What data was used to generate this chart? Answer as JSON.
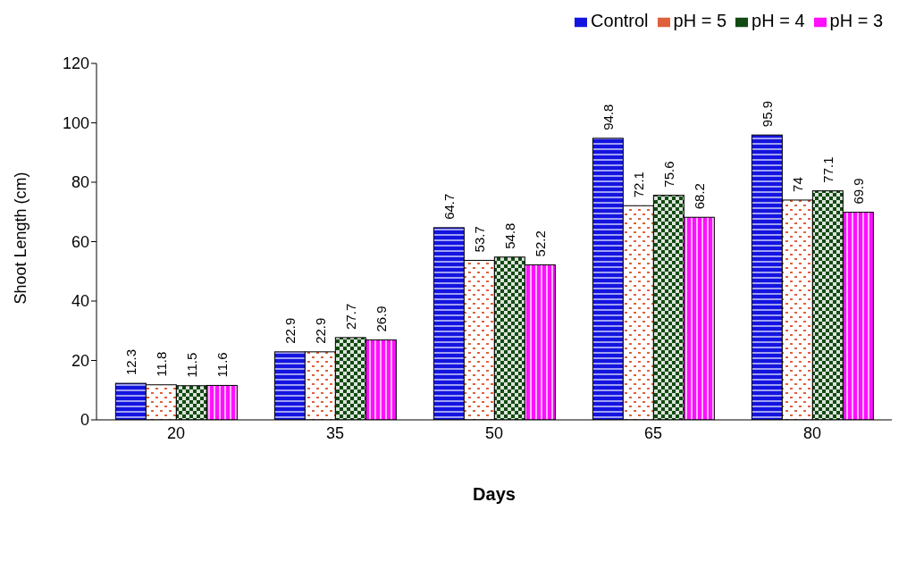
{
  "chart_data": {
    "type": "bar",
    "xlabel": "Days",
    "ylabel": "Shoot Length (cm)",
    "categories": [
      "20",
      "35",
      "50",
      "65",
      "80"
    ],
    "series": [
      {
        "name": "Control",
        "color": "#1414e0",
        "values": [
          12.3,
          22.9,
          64.7,
          94.8,
          95.9
        ]
      },
      {
        "name": "pH = 5",
        "color": "#e0603c",
        "values": [
          11.8,
          22.9,
          53.7,
          72.1,
          74
        ]
      },
      {
        "name": "pH = 4",
        "color": "#124a12",
        "values": [
          11.5,
          27.7,
          54.8,
          75.6,
          77.1
        ]
      },
      {
        "name": "pH = 3",
        "color": "#ff10ff",
        "values": [
          11.6,
          26.9,
          52.2,
          68.2,
          69.9
        ]
      }
    ],
    "ylim": [
      0,
      120
    ],
    "yticks": [
      0,
      20,
      40,
      60,
      80,
      100,
      120
    ],
    "grid": false,
    "legend": "top right",
    "data_labels": true
  }
}
